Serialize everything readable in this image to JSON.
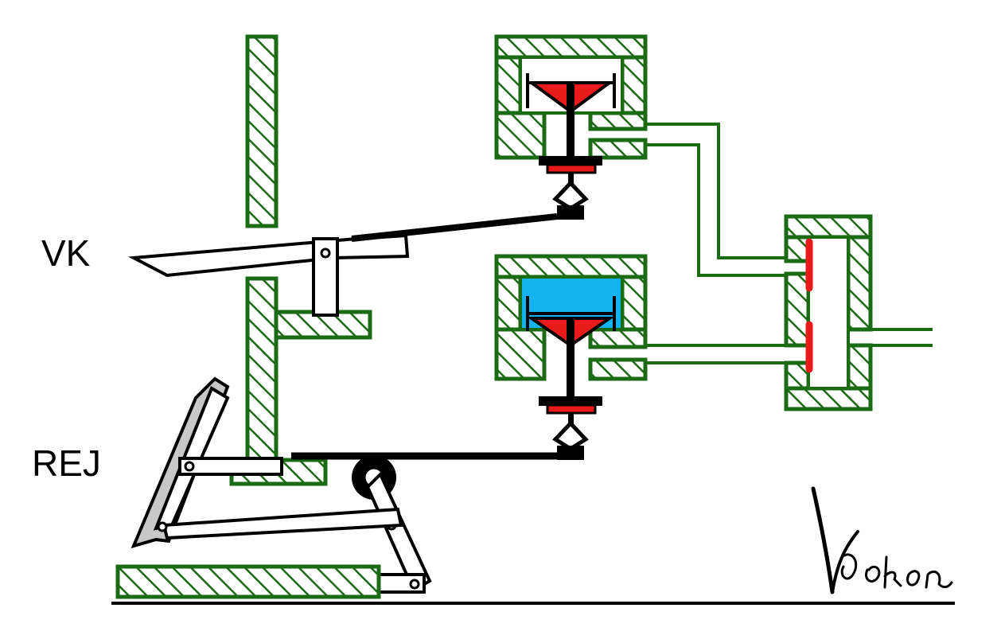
{
  "labels": {
    "vk": "VK",
    "rej": "REJ",
    "signature": "Kokon"
  },
  "colors": {
    "hatch": "#1a6b14",
    "valve": "#e81a1a",
    "fluid": "#12b4f0",
    "pedal": "#c8c8c8"
  }
}
